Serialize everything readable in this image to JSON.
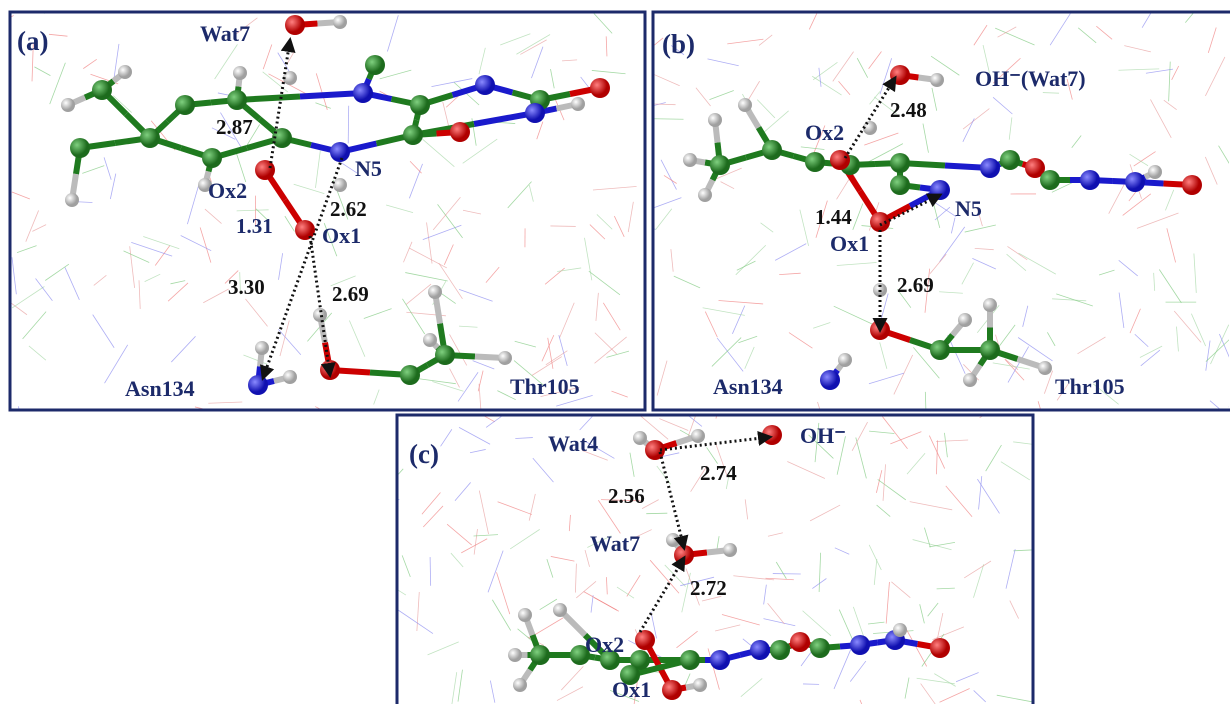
{
  "panels": [
    {
      "label": "(a)",
      "atoms": [
        "Wat7",
        "Ox2",
        "N5",
        "Ox1",
        "Asn134",
        "Thr105"
      ],
      "distances": [
        "2.87",
        "1.31",
        "2.62",
        "3.30",
        "2.69"
      ]
    },
    {
      "label": "(b)",
      "atoms": [
        "OH⁻(Wat7)",
        "Ox2",
        "N5",
        "Ox1",
        "Asn134",
        "Thr105"
      ],
      "distances": [
        "2.48",
        "1.44",
        "2.69"
      ]
    },
    {
      "label": "(c)",
      "atoms": [
        "Wat4",
        "OH⁻",
        "Wat7",
        "Ox2",
        "Ox1"
      ],
      "distances": [
        "2.74",
        "2.56",
        "2.72"
      ]
    }
  ]
}
